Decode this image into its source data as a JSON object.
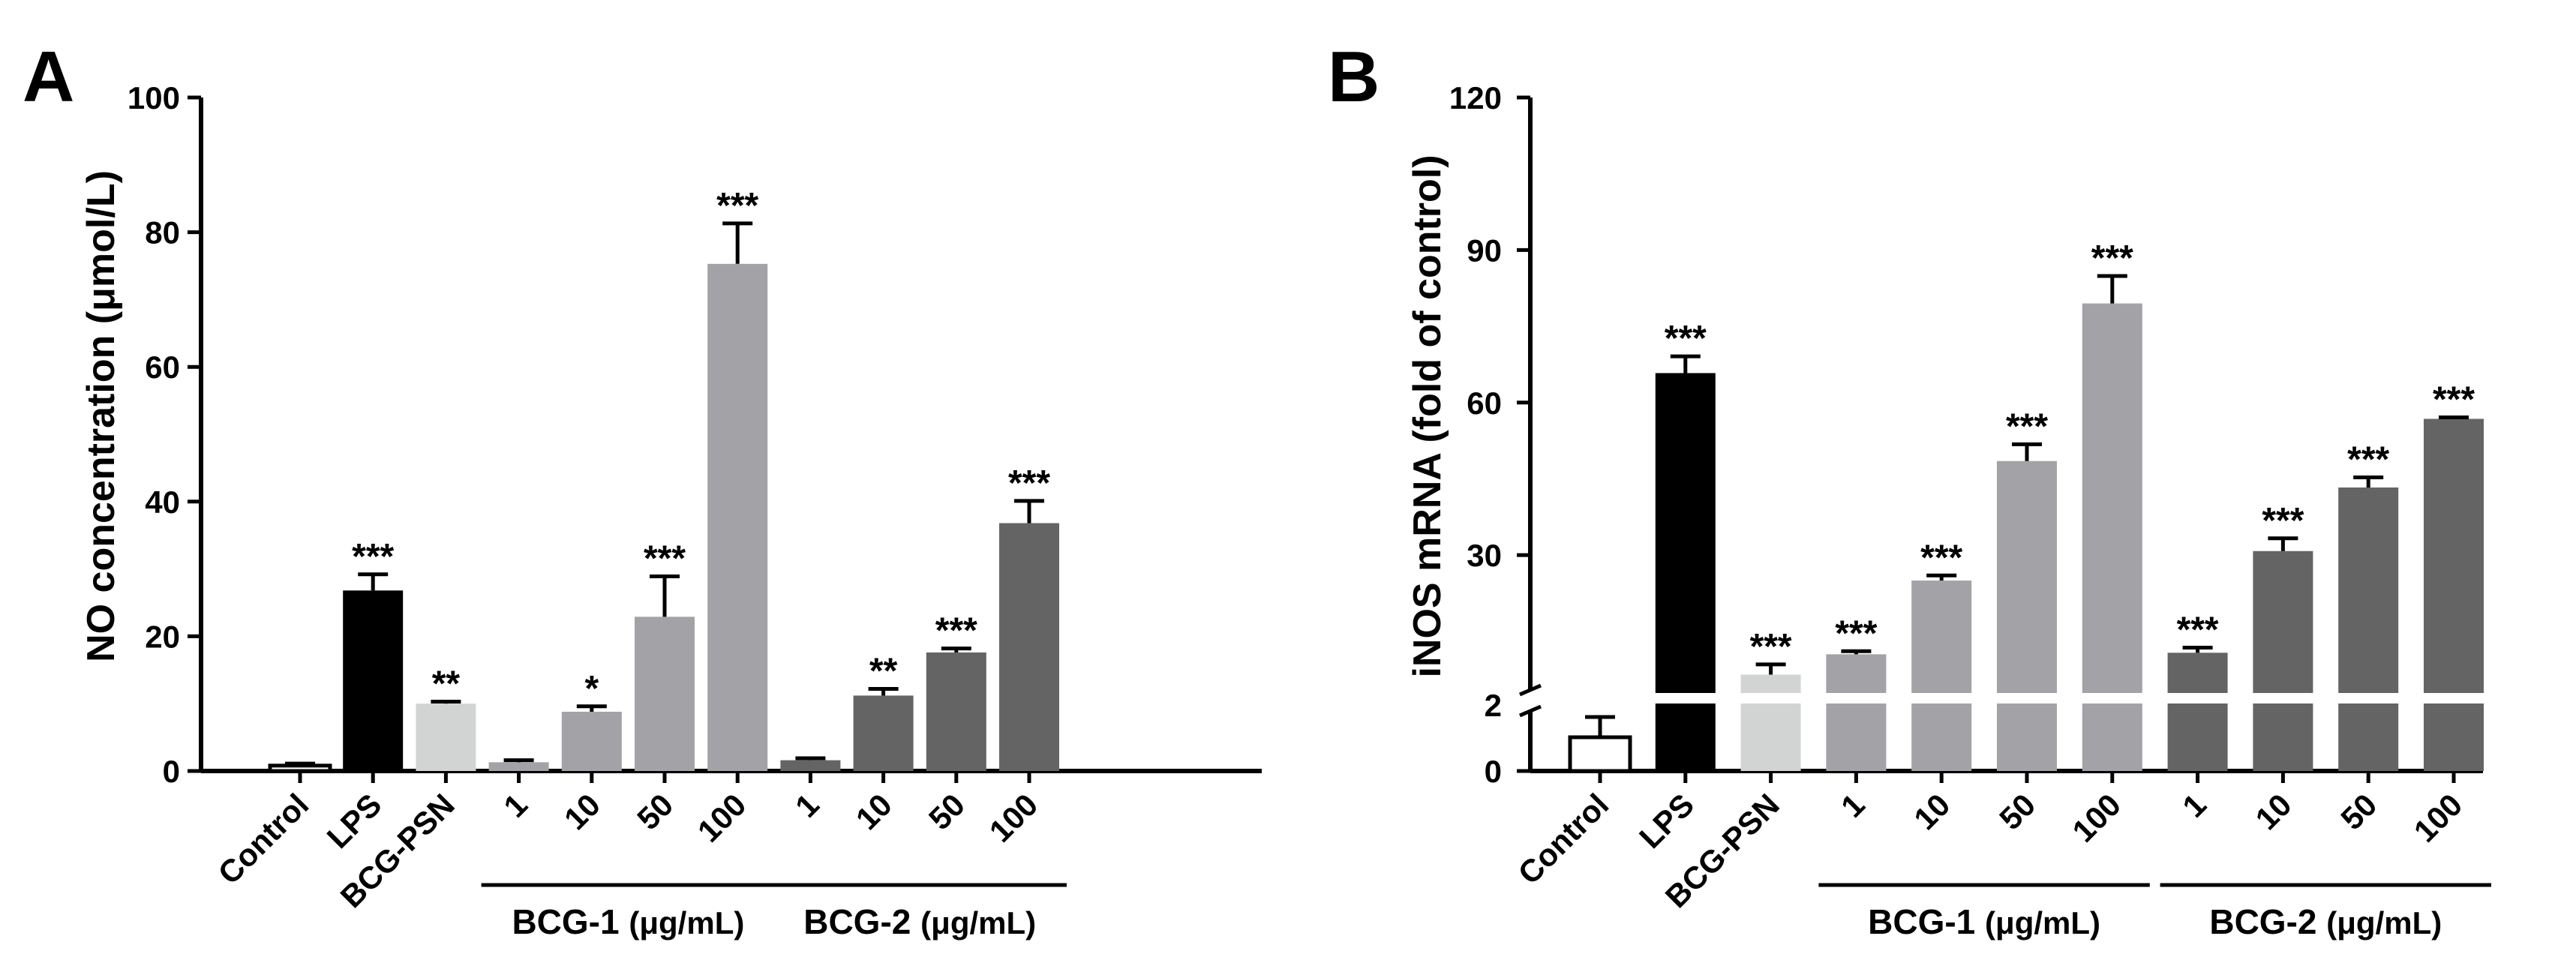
{
  "colors": {
    "control": "#ffffff",
    "lps": "#000000",
    "bcg_psn": "#d2d4d4",
    "bcg1": "#a3a2a7",
    "bcg2": "#646464",
    "axis": "#000000"
  },
  "chart_data": [
    {
      "panel": "A",
      "type": "bar",
      "ylabel": "NO concentration (μmol/L)",
      "ylim": [
        0,
        100
      ],
      "yticks": [
        "0",
        "20",
        "40",
        "60",
        "80",
        "100"
      ],
      "categories": [
        "Control",
        "LPS",
        "BCG-PSN",
        "1",
        "10",
        "50",
        "100",
        "1",
        "10",
        "50",
        "100"
      ],
      "groups": [
        "control",
        "lps",
        "bcg_psn",
        "bcg1",
        "bcg1",
        "bcg1",
        "bcg1",
        "bcg2",
        "bcg2",
        "bcg2",
        "bcg2"
      ],
      "values": [
        0.8,
        26.8,
        10.0,
        1.3,
        8.8,
        22.9,
        75.3,
        1.6,
        11.2,
        17.6,
        36.8
      ],
      "errors": [
        0.3,
        2.4,
        0.3,
        0.3,
        0.8,
        6.0,
        6.0,
        0.3,
        1.0,
        0.6,
        3.3
      ],
      "significance": [
        "",
        "***",
        "**",
        "",
        "*",
        "***",
        "***",
        "",
        "**",
        "***",
        "***"
      ],
      "group_labels": [
        {
          "name": "BCG-1",
          "unit": "(μg/mL)"
        },
        {
          "name": "BCG-2",
          "unit": "(μg/mL)"
        }
      ]
    },
    {
      "panel": "B",
      "type": "bar",
      "ylabel": "iNOS mRNA (fold of control)",
      "ylim_lower": [
        0,
        2
      ],
      "ylim_upper": [
        2,
        120
      ],
      "yticks": [
        "0",
        "2",
        "30",
        "60",
        "90",
        "120"
      ],
      "categories": [
        "Control",
        "LPS",
        "BCG-PSN",
        "1",
        "10",
        "50",
        "100",
        "1",
        "10",
        "50",
        "100"
      ],
      "groups": [
        "control",
        "lps",
        "bcg_psn",
        "bcg1",
        "bcg1",
        "bcg1",
        "bcg1",
        "bcg2",
        "bcg2",
        "bcg2",
        "bcg2"
      ],
      "values": [
        1.0,
        65.8,
        6.5,
        10.5,
        25.0,
        48.5,
        79.5,
        10.8,
        30.8,
        43.3,
        56.8
      ],
      "errors": [
        0.6,
        3.3,
        2.0,
        0.6,
        1.0,
        3.3,
        5.4,
        1.0,
        2.5,
        2.0,
        0.3
      ],
      "significance": [
        "",
        "***",
        "***",
        "***",
        "***",
        "***",
        "***",
        "***",
        "***",
        "***",
        "***"
      ],
      "group_labels": [
        {
          "name": "BCG-1",
          "unit": "(μg/mL)"
        },
        {
          "name": "BCG-2",
          "unit": "(μg/mL)"
        }
      ]
    }
  ],
  "panel_letters": [
    "A",
    "B"
  ]
}
